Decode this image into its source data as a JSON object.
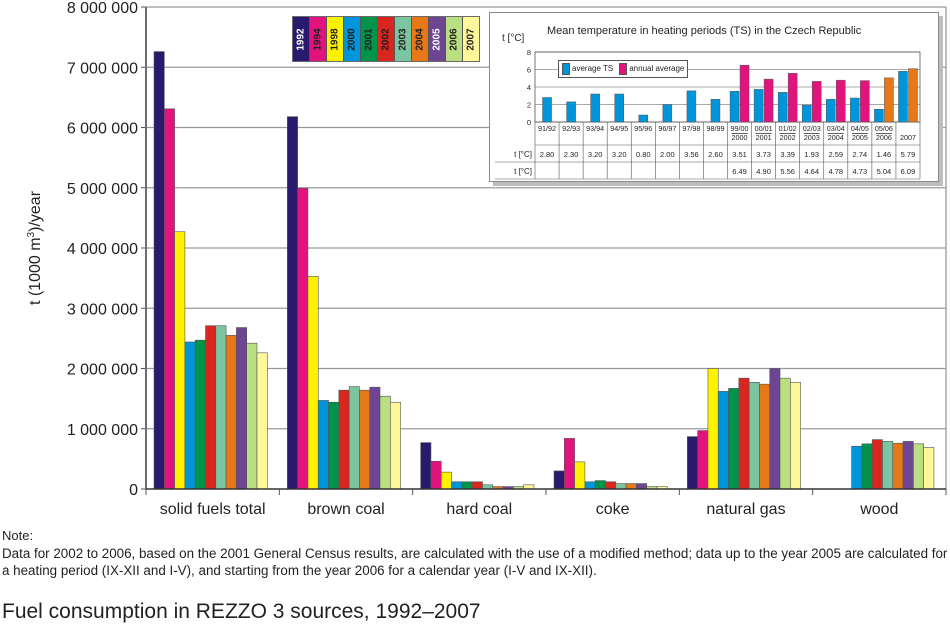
{
  "chart_data": {
    "type": "bar",
    "title": "Fuel consumption in REZZO 3 sources, 1992–2007",
    "xlabel": "",
    "ylabel": "t (1000 m³)/year",
    "ylabel_main": "t (1000 m",
    "ylabel_sup": "3",
    "ylabel_tail": ")/year",
    "ylim": [
      0,
      8000000
    ],
    "yticks": [
      0,
      1000000,
      2000000,
      3000000,
      4000000,
      5000000,
      6000000,
      7000000,
      8000000
    ],
    "ytick_labels": [
      "0",
      "1 000 000",
      "2 000 000",
      "3 000 000",
      "4 000 000",
      "5 000 000",
      "6 000 000",
      "7 000 000",
      "8 000 000"
    ],
    "grid": true,
    "legend_position": "top-left-center",
    "categories": [
      "solid fuels total",
      "brown coal",
      "hard coal",
      "coke",
      "natural gas",
      "wood"
    ],
    "series": [
      {
        "name": "1992",
        "color": "#2a1a6e",
        "values": [
          7260000,
          6180000,
          770000,
          300000,
          870000,
          null
        ]
      },
      {
        "name": "1994",
        "color": "#e0147c",
        "values": [
          6310000,
          4990000,
          460000,
          840000,
          970000,
          null
        ]
      },
      {
        "name": "1998",
        "color": "#fff200",
        "values": [
          4270000,
          3530000,
          280000,
          450000,
          2000000,
          null
        ]
      },
      {
        "name": "2000",
        "color": "#0095da",
        "values": [
          2440000,
          1470000,
          120000,
          120000,
          1620000,
          710000
        ]
      },
      {
        "name": "2001",
        "color": "#00934a",
        "values": [
          2470000,
          1440000,
          120000,
          140000,
          1670000,
          750000
        ]
      },
      {
        "name": "2002",
        "color": "#d9261f",
        "values": [
          2710000,
          1640000,
          120000,
          120000,
          1840000,
          820000
        ]
      },
      {
        "name": "2003",
        "color": "#7bc6a0",
        "values": [
          2710000,
          1700000,
          70000,
          90000,
          1770000,
          790000
        ]
      },
      {
        "name": "2004",
        "color": "#e77817",
        "values": [
          2550000,
          1640000,
          40000,
          90000,
          1740000,
          760000
        ]
      },
      {
        "name": "2005",
        "color": "#6d4593",
        "values": [
          2680000,
          1690000,
          40000,
          90000,
          2000000,
          790000
        ]
      },
      {
        "name": "2006",
        "color": "#badf80",
        "values": [
          2420000,
          1540000,
          40000,
          40000,
          1840000,
          750000
        ]
      },
      {
        "name": "2007",
        "color": "#fff799",
        "values": [
          2260000,
          1440000,
          70000,
          40000,
          1770000,
          690000
        ]
      }
    ],
    "inset": {
      "type": "bar",
      "title": "Mean temperature in heating periods (TS) in the Czech Republic",
      "ylabel": "t [°C]",
      "ylim": [
        0,
        8
      ],
      "yticks": [
        0,
        2,
        4,
        6,
        8
      ],
      "legend": [
        {
          "name": "average TS",
          "color": "#0095da"
        },
        {
          "name": "annual average",
          "color": "#e0147c"
        }
      ],
      "categories": [
        [
          "91/92",
          ""
        ],
        [
          "92/93",
          ""
        ],
        [
          "93/94",
          ""
        ],
        [
          "94/95",
          ""
        ],
        [
          "95/96",
          ""
        ],
        [
          "96/97",
          ""
        ],
        [
          "97/98",
          ""
        ],
        [
          "98/99",
          ""
        ],
        [
          "99/00",
          "2000"
        ],
        [
          "00/01",
          "2001"
        ],
        [
          "01/02",
          "2002"
        ],
        [
          "02/03",
          "2003"
        ],
        [
          "03/04",
          "2004"
        ],
        [
          "04/05",
          "2005"
        ],
        [
          "05/06",
          "2006"
        ],
        [
          "",
          "2007"
        ]
      ],
      "average_ts": [
        2.8,
        2.3,
        3.2,
        3.2,
        0.8,
        2.0,
        3.56,
        2.6,
        3.51,
        3.73,
        3.39,
        1.93,
        2.59,
        2.74,
        1.46,
        5.79
      ],
      "annual_average": [
        null,
        null,
        null,
        null,
        null,
        null,
        null,
        null,
        6.49,
        4.9,
        5.56,
        4.64,
        4.78,
        4.73,
        5.04,
        6.09
      ],
      "average_ts_labels": [
        "2.80",
        "2.30",
        "3.20",
        "3.20",
        "0.80",
        "2.00",
        "3.56",
        "2.60",
        "3.51",
        "3.73",
        "3.39",
        "1.93",
        "2.59",
        "2.74",
        "1.46",
        "5.79"
      ],
      "annual_average_labels": [
        "",
        "",
        "",
        "",
        "",
        "",
        "",
        "",
        "6.49",
        "4.90",
        "5.56",
        "4.64",
        "4.78",
        "4.73",
        "5.04",
        "6.09"
      ],
      "annual_color_override": {
        "indices": [
          14,
          15
        ],
        "color": "#e77817"
      },
      "row_label_1": "t [°C]",
      "row_label_2": "t [°C]"
    }
  },
  "note": {
    "label": "Note:",
    "text": "Data for 2002 to 2006, based on the 2001 General Census results, are calculated with the use of a modified method; data up to the year 2005 are calculated for a heating period (IX-XII and I-V), and starting from the year 2006 for a calendar year (I-V and IX-XII)."
  },
  "figure_title": "Fuel consumption in REZZO 3 sources, 1992–2007"
}
